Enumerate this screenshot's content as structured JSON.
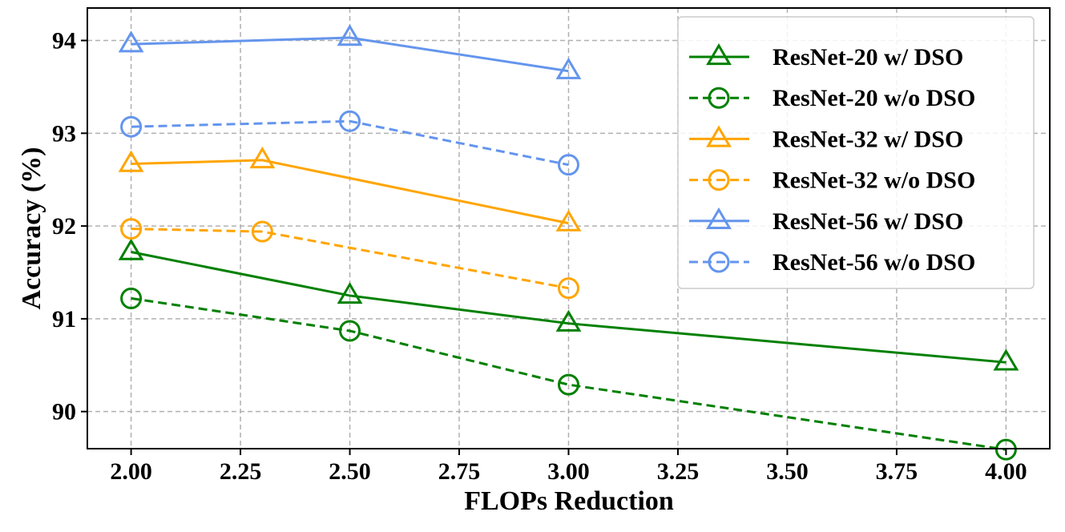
{
  "chart_data": {
    "type": "line",
    "title": "",
    "xlabel": "FLOPs Reduction",
    "ylabel": "Accuracy (%)",
    "xlim": [
      1.9,
      4.1
    ],
    "ylim": [
      89.6,
      94.35
    ],
    "xticks": [
      2.0,
      2.25,
      2.5,
      2.75,
      3.0,
      3.25,
      3.5,
      3.75,
      4.0
    ],
    "xtick_labels": [
      "2.00",
      "2.25",
      "2.50",
      "2.75",
      "3.00",
      "3.25",
      "3.50",
      "3.75",
      "4.00"
    ],
    "yticks": [
      90,
      91,
      92,
      93,
      94
    ],
    "ytick_labels": [
      "90",
      "91",
      "92",
      "93",
      "94"
    ],
    "grid": true,
    "legend_position": "top-right",
    "series": [
      {
        "name": "ResNet-20 w/ DSO",
        "color": "#008000",
        "linestyle": "solid",
        "marker": "triangle",
        "x": [
          2.0,
          2.5,
          3.0,
          4.0
        ],
        "y": [
          91.72,
          91.25,
          90.95,
          90.53
        ]
      },
      {
        "name": "ResNet-20 w/o DSO",
        "color": "#008000",
        "linestyle": "dashed",
        "marker": "circle",
        "x": [
          2.0,
          2.5,
          3.0,
          4.0
        ],
        "y": [
          91.22,
          90.87,
          90.29,
          89.59
        ]
      },
      {
        "name": "ResNet-32 w/ DSO",
        "color": "#FFA500",
        "linestyle": "solid",
        "marker": "triangle",
        "x": [
          2.0,
          2.3,
          3.0
        ],
        "y": [
          92.67,
          92.71,
          92.03
        ]
      },
      {
        "name": "ResNet-32 w/o DSO",
        "color": "#FFA500",
        "linestyle": "dashed",
        "marker": "circle",
        "x": [
          2.0,
          2.3,
          3.0
        ],
        "y": [
          91.97,
          91.94,
          91.33
        ]
      },
      {
        "name": "ResNet-56 w/ DSO",
        "color": "#6495ED",
        "linestyle": "solid",
        "marker": "triangle",
        "x": [
          2.0,
          2.5,
          3.0
        ],
        "y": [
          93.96,
          94.03,
          93.67
        ]
      },
      {
        "name": "ResNet-56 w/o DSO",
        "color": "#6495ED",
        "linestyle": "dashed",
        "marker": "circle",
        "x": [
          2.0,
          2.5,
          3.0
        ],
        "y": [
          93.07,
          93.13,
          92.66
        ]
      }
    ]
  }
}
